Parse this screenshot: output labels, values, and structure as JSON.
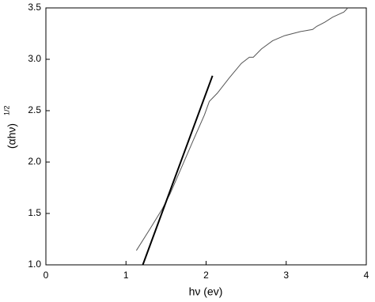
{
  "chart_data": {
    "type": "line",
    "x_label": "hν (ev)",
    "y_label": "(αhν)",
    "y_label_superscript": "1/2",
    "xlim": [
      0,
      4
    ],
    "xticks": [
      0,
      1,
      2,
      3,
      4
    ],
    "ylim": [
      1.0,
      3.5
    ],
    "yticks": [
      {
        "value": 1.0,
        "label": "1.0"
      },
      1.5,
      {
        "value": 2.0,
        "label": "2.0"
      },
      2.5,
      {
        "value": 3.0,
        "label": "3.0"
      },
      3.5
    ],
    "grid": false,
    "series": [
      {
        "color": "#555555",
        "width": 1,
        "x": [
          1.13,
          1.3,
          1.45,
          1.55,
          1.7,
          1.85,
          1.98,
          2.04,
          2.14,
          2.29,
          2.44,
          2.54,
          2.59,
          2.69,
          2.83,
          2.98,
          3.18,
          3.33,
          3.38,
          3.48,
          3.58,
          3.72,
          3.77
        ],
        "values": [
          1.14,
          1.35,
          1.54,
          1.69,
          1.96,
          2.23,
          2.46,
          2.59,
          2.67,
          2.82,
          2.96,
          3.02,
          3.02,
          3.1,
          3.18,
          3.23,
          3.27,
          3.29,
          3.32,
          3.36,
          3.41,
          3.46,
          3.5
        ]
      },
      {
        "color": "#000000",
        "width": 2,
        "x": [
          1.21,
          2.08
        ],
        "values": [
          1.0,
          2.84
        ]
      }
    ]
  }
}
